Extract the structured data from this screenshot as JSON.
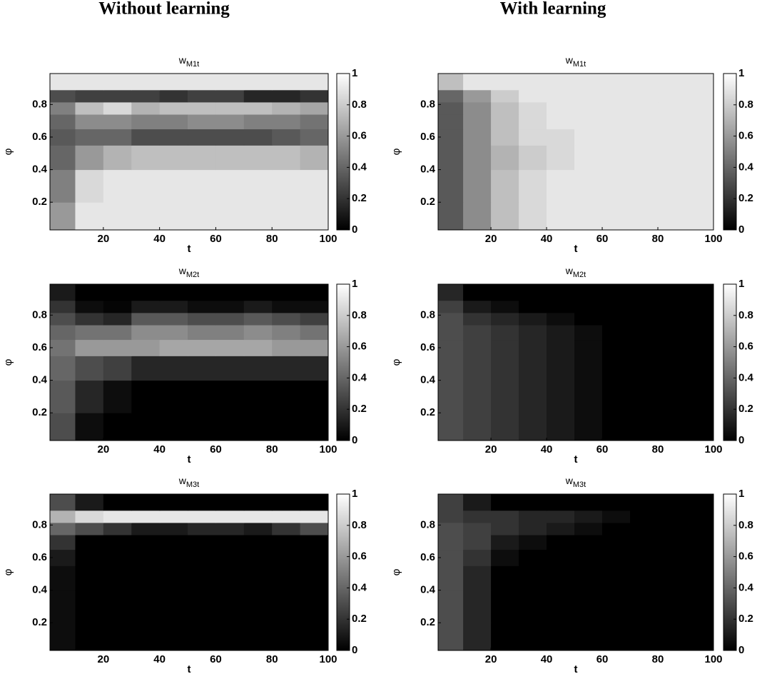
{
  "column_titles": [
    "Without learning",
    "With learning"
  ],
  "chart_data": [
    {
      "type": "contour",
      "title": "w",
      "title_sub": "M1t",
      "xlabel": "t",
      "ylabel": "φ",
      "x": [
        5,
        15,
        25,
        35,
        45,
        55,
        65,
        75,
        85,
        95
      ],
      "y": [
        0.1,
        0.3,
        0.5,
        0.6,
        0.7,
        0.78,
        0.85,
        0.93
      ],
      "z": [
        [
          0.6,
          0.9,
          0.9,
          0.9,
          0.9,
          0.9,
          0.9,
          0.9,
          0.9,
          0.9
        ],
        [
          0.5,
          0.85,
          0.9,
          0.9,
          0.9,
          0.9,
          0.9,
          0.9,
          0.9,
          0.9
        ],
        [
          0.4,
          0.6,
          0.7,
          0.75,
          0.75,
          0.75,
          0.75,
          0.75,
          0.75,
          0.7
        ],
        [
          0.35,
          0.4,
          0.4,
          0.3,
          0.3,
          0.3,
          0.3,
          0.3,
          0.35,
          0.4
        ],
        [
          0.4,
          0.55,
          0.55,
          0.5,
          0.5,
          0.55,
          0.55,
          0.5,
          0.5,
          0.45
        ],
        [
          0.5,
          0.75,
          0.85,
          0.7,
          0.75,
          0.75,
          0.75,
          0.75,
          0.7,
          0.65
        ],
        [
          0.3,
          0.25,
          0.25,
          0.25,
          0.2,
          0.25,
          0.25,
          0.15,
          0.15,
          0.2
        ],
        [
          0.9,
          0.9,
          0.9,
          0.9,
          0.9,
          0.9,
          0.9,
          0.9,
          0.9,
          0.9
        ]
      ],
      "xlim": [
        1,
        100
      ],
      "ylim": [
        0.03,
        0.99
      ],
      "xticks": [
        20,
        40,
        60,
        80,
        100
      ],
      "yticks": [
        0.2,
        0.4,
        0.6,
        0.8
      ],
      "clim": [
        0,
        1
      ],
      "cticks": [
        0,
        0.2,
        0.4,
        0.6,
        0.8,
        1
      ]
    },
    {
      "type": "contour",
      "title": "w",
      "title_sub": "M1t",
      "xlabel": "t",
      "ylabel": "φ",
      "x": [
        5,
        15,
        25,
        35,
        45,
        55,
        65,
        75,
        85,
        95
      ],
      "y": [
        0.1,
        0.3,
        0.5,
        0.6,
        0.7,
        0.78,
        0.85,
        0.93
      ],
      "z": [
        [
          0.35,
          0.55,
          0.75,
          0.85,
          0.9,
          0.9,
          0.9,
          0.9,
          0.9,
          0.9
        ],
        [
          0.35,
          0.55,
          0.75,
          0.85,
          0.9,
          0.9,
          0.9,
          0.9,
          0.9,
          0.9
        ],
        [
          0.35,
          0.55,
          0.7,
          0.8,
          0.85,
          0.9,
          0.9,
          0.9,
          0.9,
          0.9
        ],
        [
          0.35,
          0.55,
          0.75,
          0.85,
          0.85,
          0.9,
          0.9,
          0.9,
          0.9,
          0.9
        ],
        [
          0.35,
          0.55,
          0.75,
          0.85,
          0.9,
          0.9,
          0.9,
          0.9,
          0.9,
          0.9
        ],
        [
          0.35,
          0.55,
          0.75,
          0.85,
          0.9,
          0.9,
          0.9,
          0.9,
          0.9,
          0.9
        ],
        [
          0.4,
          0.6,
          0.8,
          0.9,
          0.9,
          0.9,
          0.9,
          0.9,
          0.9,
          0.9
        ],
        [
          0.75,
          0.9,
          0.9,
          0.9,
          0.9,
          0.9,
          0.9,
          0.9,
          0.9,
          0.9
        ]
      ],
      "xlim": [
        1,
        100
      ],
      "ylim": [
        0.03,
        0.99
      ],
      "xticks": [
        20,
        40,
        60,
        80,
        100
      ],
      "yticks": [
        0.2,
        0.4,
        0.6,
        0.8
      ],
      "clim": [
        0,
        1
      ],
      "cticks": [
        0,
        0.2,
        0.4,
        0.6,
        0.8,
        1
      ]
    },
    {
      "type": "contour",
      "title": "w",
      "title_sub": "M2t",
      "xlabel": "t",
      "ylabel": "φ",
      "x": [
        5,
        15,
        25,
        35,
        45,
        55,
        65,
        75,
        85,
        95
      ],
      "y": [
        0.1,
        0.3,
        0.5,
        0.6,
        0.7,
        0.78,
        0.85,
        0.93
      ],
      "z": [
        [
          0.3,
          0.05,
          0,
          0,
          0,
          0,
          0,
          0,
          0,
          0
        ],
        [
          0.35,
          0.15,
          0.05,
          0,
          0,
          0,
          0,
          0,
          0,
          0
        ],
        [
          0.4,
          0.3,
          0.25,
          0.15,
          0.15,
          0.15,
          0.15,
          0.15,
          0.15,
          0.15
        ],
        [
          0.45,
          0.6,
          0.6,
          0.6,
          0.65,
          0.65,
          0.65,
          0.65,
          0.6,
          0.6
        ],
        [
          0.4,
          0.45,
          0.45,
          0.55,
          0.55,
          0.5,
          0.5,
          0.55,
          0.5,
          0.45
        ],
        [
          0.3,
          0.2,
          0.15,
          0.35,
          0.35,
          0.3,
          0.3,
          0.35,
          0.3,
          0.25
        ],
        [
          0.2,
          0.05,
          0.02,
          0.1,
          0.1,
          0.05,
          0.05,
          0.1,
          0.05,
          0.05
        ],
        [
          0.1,
          0,
          0,
          0,
          0,
          0,
          0,
          0,
          0,
          0
        ]
      ],
      "xlim": [
        1,
        100
      ],
      "ylim": [
        0.03,
        0.99
      ],
      "xticks": [
        20,
        40,
        60,
        80,
        100
      ],
      "yticks": [
        0.2,
        0.4,
        0.6,
        0.8
      ],
      "clim": [
        0,
        1
      ],
      "cticks": [
        0,
        0.2,
        0.4,
        0.6,
        0.8,
        1
      ]
    },
    {
      "type": "contour",
      "title": "w",
      "title_sub": "M2t",
      "xlabel": "t",
      "ylabel": "φ",
      "x": [
        5,
        15,
        25,
        35,
        45,
        55,
        65,
        75,
        85,
        95
      ],
      "y": [
        0.1,
        0.3,
        0.5,
        0.6,
        0.7,
        0.78,
        0.85,
        0.93
      ],
      "z": [
        [
          0.3,
          0.25,
          0.2,
          0.15,
          0.1,
          0.05,
          0,
          0,
          0,
          0
        ],
        [
          0.3,
          0.25,
          0.2,
          0.15,
          0.1,
          0.05,
          0,
          0,
          0,
          0
        ],
        [
          0.3,
          0.25,
          0.2,
          0.15,
          0.1,
          0.05,
          0,
          0,
          0,
          0
        ],
        [
          0.3,
          0.25,
          0.2,
          0.15,
          0.1,
          0.05,
          0,
          0,
          0,
          0
        ],
        [
          0.3,
          0.25,
          0.2,
          0.15,
          0.1,
          0.05,
          0,
          0,
          0,
          0
        ],
        [
          0.3,
          0.2,
          0.15,
          0.1,
          0.05,
          0,
          0,
          0,
          0,
          0
        ],
        [
          0.25,
          0.1,
          0.05,
          0,
          0,
          0,
          0,
          0,
          0,
          0
        ],
        [
          0.15,
          0,
          0,
          0,
          0,
          0,
          0,
          0,
          0,
          0
        ]
      ],
      "xlim": [
        1,
        100
      ],
      "ylim": [
        0.03,
        0.99
      ],
      "xticks": [
        20,
        40,
        60,
        80,
        100
      ],
      "yticks": [
        0.2,
        0.4,
        0.6,
        0.8
      ],
      "clim": [
        0,
        1
      ],
      "cticks": [
        0,
        0.2,
        0.4,
        0.6,
        0.8,
        1
      ]
    },
    {
      "type": "contour",
      "title": "w",
      "title_sub": "M3t",
      "xlabel": "t",
      "ylabel": "φ",
      "x": [
        5,
        15,
        25,
        35,
        45,
        55,
        65,
        75,
        85,
        95
      ],
      "y": [
        0.1,
        0.3,
        0.5,
        0.6,
        0.7,
        0.78,
        0.85,
        0.93
      ],
      "z": [
        [
          0.05,
          0,
          0,
          0,
          0,
          0,
          0,
          0,
          0,
          0
        ],
        [
          0.05,
          0,
          0,
          0,
          0,
          0,
          0,
          0,
          0,
          0
        ],
        [
          0.05,
          0,
          0,
          0,
          0,
          0,
          0,
          0,
          0,
          0
        ],
        [
          0.1,
          0,
          0,
          0,
          0,
          0,
          0,
          0,
          0,
          0
        ],
        [
          0.2,
          0,
          0,
          0,
          0,
          0,
          0,
          0,
          0,
          0
        ],
        [
          0.4,
          0.3,
          0.2,
          0.1,
          0.1,
          0.15,
          0.15,
          0.1,
          0.2,
          0.3
        ],
        [
          0.7,
          0.85,
          0.9,
          0.9,
          0.9,
          0.9,
          0.9,
          0.9,
          0.9,
          0.9
        ],
        [
          0.3,
          0.1,
          0,
          0,
          0,
          0,
          0,
          0,
          0,
          0
        ]
      ],
      "xlim": [
        1,
        100
      ],
      "ylim": [
        0.03,
        0.99
      ],
      "xticks": [
        20,
        40,
        60,
        80,
        100
      ],
      "yticks": [
        0.2,
        0.4,
        0.6,
        0.8
      ],
      "clim": [
        0,
        1
      ],
      "cticks": [
        0,
        0.2,
        0.4,
        0.6,
        0.8,
        1
      ]
    },
    {
      "type": "contour",
      "title": "w",
      "title_sub": "M3t",
      "xlabel": "t",
      "ylabel": "φ",
      "x": [
        5,
        15,
        25,
        35,
        45,
        55,
        65,
        75,
        85,
        95
      ],
      "y": [
        0.1,
        0.3,
        0.5,
        0.6,
        0.7,
        0.78,
        0.85,
        0.93
      ],
      "z": [
        [
          0.3,
          0.15,
          0,
          0,
          0,
          0,
          0,
          0,
          0,
          0
        ],
        [
          0.3,
          0.15,
          0,
          0,
          0,
          0,
          0,
          0,
          0,
          0
        ],
        [
          0.3,
          0.15,
          0,
          0,
          0,
          0,
          0,
          0,
          0,
          0
        ],
        [
          0.3,
          0.2,
          0.05,
          0,
          0,
          0,
          0,
          0,
          0,
          0
        ],
        [
          0.3,
          0.25,
          0.1,
          0.05,
          0,
          0,
          0,
          0,
          0,
          0
        ],
        [
          0.3,
          0.25,
          0.2,
          0.15,
          0.1,
          0.05,
          0,
          0,
          0,
          0
        ],
        [
          0.25,
          0.2,
          0.2,
          0.15,
          0.15,
          0.1,
          0.05,
          0,
          0,
          0
        ],
        [
          0.25,
          0.1,
          0,
          0,
          0,
          0,
          0,
          0,
          0,
          0
        ]
      ],
      "xlim": [
        1,
        100
      ],
      "ylim": [
        0.03,
        0.99
      ],
      "xticks": [
        20,
        40,
        60,
        80,
        100
      ],
      "yticks": [
        0.2,
        0.4,
        0.6,
        0.8
      ],
      "clim": [
        0,
        1
      ],
      "cticks": [
        0,
        0.2,
        0.4,
        0.6,
        0.8,
        1
      ]
    }
  ]
}
